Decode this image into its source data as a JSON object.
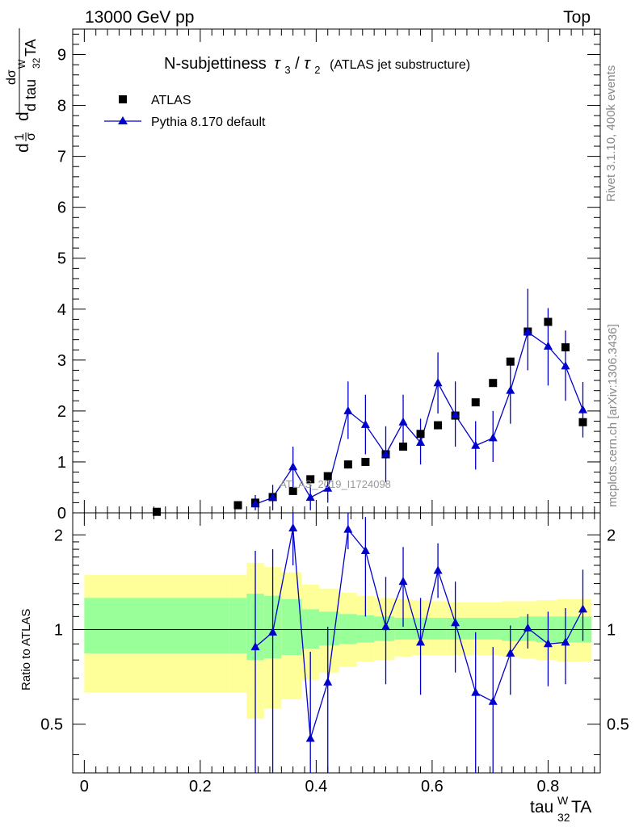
{
  "header": {
    "left": "13000 GeV pp",
    "right": "Top"
  },
  "title": {
    "main": "N-subjettiness",
    "tau3": "τ",
    "sub3": "3",
    "slash": "/",
    "tau2": "τ",
    "sub2": "2",
    "paren": "(ATLAS jet substructure)"
  },
  "side_labels": {
    "rivet": "Rivet 3.1.10,  400k events",
    "mcplots": "mcplots.cern.ch [arXiv:1306.3436]"
  },
  "watermark": "ATLAS_2019_I1724098",
  "legend": [
    {
      "label": "ATLAS",
      "marker": "square",
      "color": "#000000"
    },
    {
      "label": "Pythia 8.170 default",
      "marker": "triangle",
      "color": "#0000cc"
    }
  ],
  "y_axis_main": {
    "ticks": [
      "0",
      "1",
      "2",
      "3",
      "4",
      "5",
      "6",
      "7",
      "8",
      "9"
    ],
    "label_parts": {
      "d1": "d",
      "one": "1",
      "sigma1": "σ",
      "d2": "d",
      "dsigma": "dσ",
      "denom": "d tau",
      "sup": "W",
      "sub": "32",
      "ta": "TA"
    }
  },
  "y_axis_ratio": {
    "label": "Ratio to ATLAS",
    "ticks": [
      "0.5",
      "1",
      "2"
    ]
  },
  "x_axis": {
    "ticks": [
      "0",
      "0.2",
      "0.4",
      "0.6",
      "0.8"
    ],
    "label_parts": {
      "base": "tau",
      "sup": "W",
      "sub": "32",
      "ta": "TA"
    }
  },
  "chart_data": {
    "type": "scatter",
    "x_range": [
      -0.02,
      0.89
    ],
    "main_ylim": [
      0,
      9.5
    ],
    "ratio_ylim": [
      0.35,
      2.35
    ],
    "ratio_scale": "log",
    "legend_position": "top-left",
    "data_series": {
      "name": "ATLAS",
      "x": [
        0.125,
        0.265,
        0.295,
        0.325,
        0.36,
        0.39,
        0.42,
        0.455,
        0.485,
        0.52,
        0.55,
        0.58,
        0.61,
        0.64,
        0.675,
        0.705,
        0.735,
        0.765,
        0.8,
        0.83,
        0.86
      ],
      "y": [
        0.02,
        0.15,
        0.2,
        0.31,
        0.43,
        0.66,
        0.72,
        0.95,
        1.0,
        1.15,
        1.3,
        1.55,
        1.72,
        1.91,
        2.17,
        2.55,
        2.97,
        3.56,
        3.75,
        3.25,
        1.78
      ]
    },
    "mc_series": {
      "name": "Pythia 8.170 default",
      "x": [
        0.295,
        0.325,
        0.36,
        0.39,
        0.42,
        0.455,
        0.485,
        0.52,
        0.55,
        0.58,
        0.61,
        0.64,
        0.675,
        0.705,
        0.735,
        0.765,
        0.8,
        0.83,
        0.86
      ],
      "y": [
        0.17,
        0.3,
        0.9,
        0.3,
        0.48,
        2.0,
        1.73,
        1.15,
        1.78,
        1.38,
        2.55,
        1.92,
        1.32,
        1.47,
        2.4,
        3.55,
        3.27,
        2.88,
        2.02
      ],
      "y_low": [
        0.05,
        0.05,
        0.5,
        0.05,
        0.2,
        1.45,
        1.15,
        0.6,
        1.25,
        0.95,
        1.95,
        1.3,
        0.85,
        1.0,
        1.75,
        2.8,
        2.5,
        2.2,
        1.48
      ],
      "y_high": [
        0.35,
        0.55,
        1.3,
        0.55,
        0.76,
        2.58,
        2.32,
        1.7,
        2.32,
        1.85,
        3.15,
        2.58,
        1.8,
        2.0,
        3.05,
        4.4,
        4.02,
        3.58,
        2.57
      ]
    },
    "ratio_series": {
      "name": "Pythia 8.170 default",
      "x": [
        0.295,
        0.325,
        0.36,
        0.39,
        0.42,
        0.455,
        0.485,
        0.52,
        0.55,
        0.58,
        0.61,
        0.64,
        0.675,
        0.705,
        0.735,
        0.765,
        0.8,
        0.83,
        0.86
      ],
      "y": [
        0.88,
        0.98,
        2.1,
        0.45,
        0.68,
        2.08,
        1.78,
        1.02,
        1.42,
        0.91,
        1.54,
        1.05,
        0.63,
        0.59,
        0.84,
        1.01,
        0.9,
        0.91,
        1.16
      ],
      "y_low": [
        0.3,
        0.3,
        1.6,
        0.3,
        0.3,
        1.8,
        1.1,
        0.67,
        1.02,
        0.62,
        1.26,
        0.73,
        0.3,
        0.3,
        0.62,
        0.87,
        0.66,
        0.67,
        0.92
      ],
      "y_high": [
        1.78,
        1.8,
        2.4,
        0.85,
        1.02,
        2.4,
        2.28,
        1.47,
        1.83,
        1.26,
        1.88,
        1.42,
        0.98,
        0.88,
        1.03,
        1.12,
        1.14,
        1.17,
        1.55
      ]
    },
    "uncertainty_bands": {
      "x_edges": [
        0.0,
        0.25,
        0.28,
        0.31,
        0.34,
        0.375,
        0.405,
        0.44,
        0.47,
        0.5,
        0.535,
        0.565,
        0.595,
        0.625,
        0.66,
        0.69,
        0.72,
        0.75,
        0.78,
        0.815,
        0.845,
        0.875
      ],
      "green_low": [
        0.84,
        0.84,
        0.8,
        0.81,
        0.83,
        0.87,
        0.89,
        0.9,
        0.91,
        0.92,
        0.93,
        0.93,
        0.93,
        0.93,
        0.93,
        0.93,
        0.92,
        0.92,
        0.91,
        0.91,
        0.91
      ],
      "green_high": [
        1.26,
        1.26,
        1.3,
        1.28,
        1.25,
        1.16,
        1.14,
        1.12,
        1.11,
        1.1,
        1.09,
        1.09,
        1.09,
        1.09,
        1.09,
        1.09,
        1.09,
        1.1,
        1.1,
        1.1,
        1.1
      ],
      "yellow_low": [
        0.63,
        0.63,
        0.52,
        0.56,
        0.6,
        0.69,
        0.73,
        0.76,
        0.79,
        0.8,
        0.82,
        0.83,
        0.83,
        0.83,
        0.83,
        0.83,
        0.82,
        0.81,
        0.8,
        0.79,
        0.79
      ],
      "yellow_high": [
        1.49,
        1.49,
        1.63,
        1.58,
        1.52,
        1.39,
        1.35,
        1.31,
        1.28,
        1.26,
        1.25,
        1.24,
        1.23,
        1.22,
        1.22,
        1.22,
        1.23,
        1.23,
        1.24,
        1.25,
        1.25
      ],
      "green_color": "#99ff99",
      "yellow_color": "#ffff99"
    }
  }
}
